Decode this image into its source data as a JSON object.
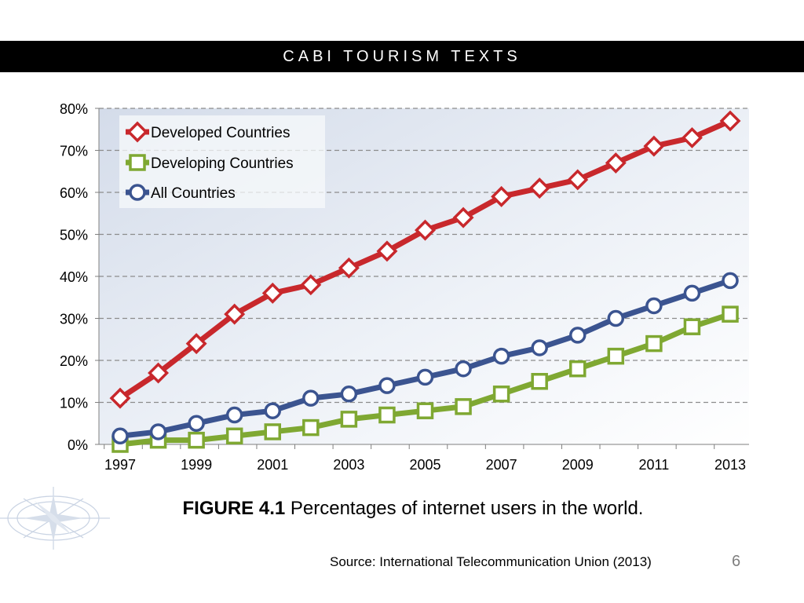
{
  "header": {
    "title": "CABI TOURISM TEXTS"
  },
  "chart_data": {
    "type": "line",
    "x": [
      1997,
      1998,
      1999,
      2000,
      2001,
      2002,
      2003,
      2004,
      2005,
      2006,
      2007,
      2008,
      2009,
      2010,
      2011,
      2012,
      2013
    ],
    "x_tick_labels": [
      "1997",
      "1999",
      "2001",
      "2003",
      "2005",
      "2007",
      "2009",
      "2011",
      "2013"
    ],
    "y_tick_labels": [
      "0%",
      "10%",
      "20%",
      "30%",
      "40%",
      "50%",
      "60%",
      "70%",
      "80%"
    ],
    "ylim": [
      0,
      80
    ],
    "y_unit": "%",
    "grid": "horizontal dashed",
    "legend_position": "top-left",
    "series": [
      {
        "name": "Developed Countries",
        "color": "#c8282c",
        "marker": "diamond",
        "values": [
          11,
          17,
          24,
          31,
          36,
          38,
          42,
          46,
          51,
          54,
          59,
          61,
          63,
          67,
          71,
          73,
          77
        ]
      },
      {
        "name": "Developing Countries",
        "color": "#7fa832",
        "marker": "square",
        "values": [
          0,
          1,
          1,
          2,
          3,
          4,
          6,
          7,
          8,
          9,
          12,
          15,
          18,
          21,
          24,
          28,
          31
        ]
      },
      {
        "name": "All Countries",
        "color": "#3b5490",
        "marker": "circle",
        "values": [
          2,
          3,
          5,
          7,
          8,
          11,
          12,
          14,
          16,
          18,
          21,
          23,
          26,
          30,
          33,
          36,
          39
        ]
      }
    ]
  },
  "caption": {
    "figure_label": "FIGURE 4.1",
    "text": "Percentages of internet users in the world."
  },
  "source": "Source: International Telecommunication Union (2013)",
  "page_number": "6"
}
